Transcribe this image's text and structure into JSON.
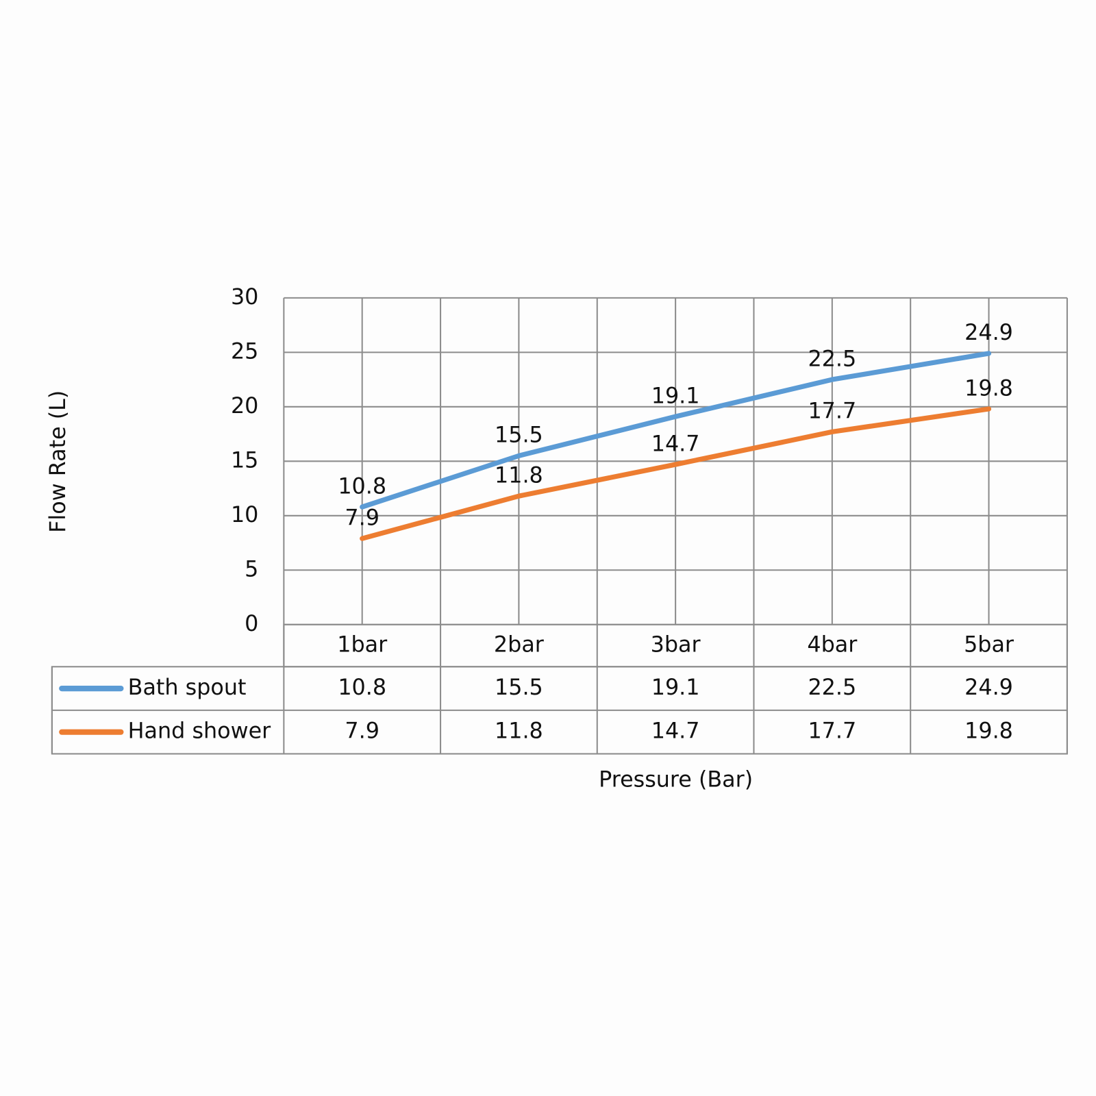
{
  "chart_data": {
    "type": "line",
    "x_label": "Pressure (Bar)",
    "y_label": "Flow Rate (L)",
    "categories": [
      "1bar",
      "2bar",
      "3bar",
      "4bar",
      "5bar"
    ],
    "series": [
      {
        "name": "Bath spout",
        "color": "#5b9bd5",
        "values": [
          10.8,
          15.5,
          19.1,
          22.5,
          24.9
        ]
      },
      {
        "name": "Hand shower",
        "color": "#ed7d31",
        "values": [
          7.9,
          11.8,
          14.7,
          17.7,
          19.8
        ]
      }
    ],
    "ylim": [
      0,
      30
    ],
    "yticks": [
      0,
      5,
      10,
      15,
      20,
      25,
      30
    ],
    "grid": true,
    "data_labels": true,
    "data_table": true
  }
}
